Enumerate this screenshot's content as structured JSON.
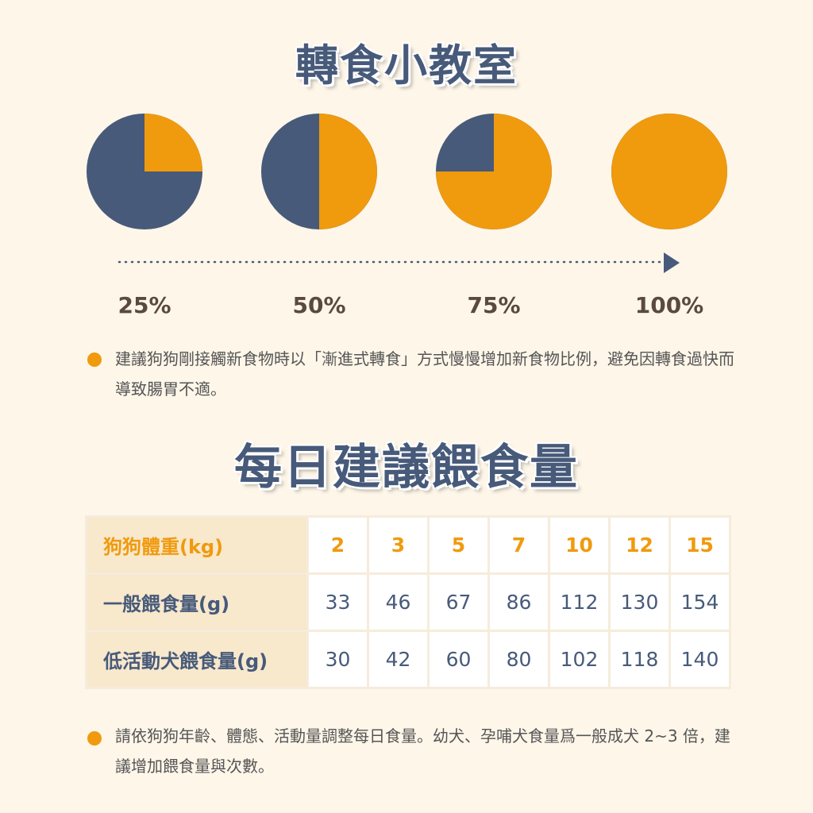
{
  "title1": "轉食小教室",
  "title2": "每日建議餵食量",
  "colors": {
    "new_food": "#f09a0e",
    "old_food": "#475a7a",
    "background": "#fdf6e9"
  },
  "chart_data": {
    "type": "pie",
    "pies": [
      {
        "label": "25%",
        "new_food_fraction": 0.25
      },
      {
        "label": "50%",
        "new_food_fraction": 0.5
      },
      {
        "label": "75%",
        "new_food_fraction": 0.75
      },
      {
        "label": "100%",
        "new_food_fraction": 1.0
      }
    ]
  },
  "note1": "建議狗狗剛接觸新食物時以「漸進式轉食」方式慢慢增加新食物比例，避免因轉食過快而導致腸胃不適。",
  "note2": "請依狗狗年齡、體態、活動量調整每日食量。幼犬、孕哺犬食量爲一般成犬 2~3 倍，建議增加餵食量與次數。",
  "table": {
    "rows": [
      {
        "label": "狗狗體重(kg)",
        "values": [
          "2",
          "3",
          "5",
          "7",
          "10",
          "12",
          "15"
        ]
      },
      {
        "label": "一般餵食量(g)",
        "values": [
          "33",
          "46",
          "67",
          "86",
          "112",
          "130",
          "154"
        ]
      },
      {
        "label": "低活動犬餵食量(g)",
        "values": [
          "30",
          "42",
          "60",
          "80",
          "102",
          "118",
          "140"
        ]
      }
    ]
  }
}
